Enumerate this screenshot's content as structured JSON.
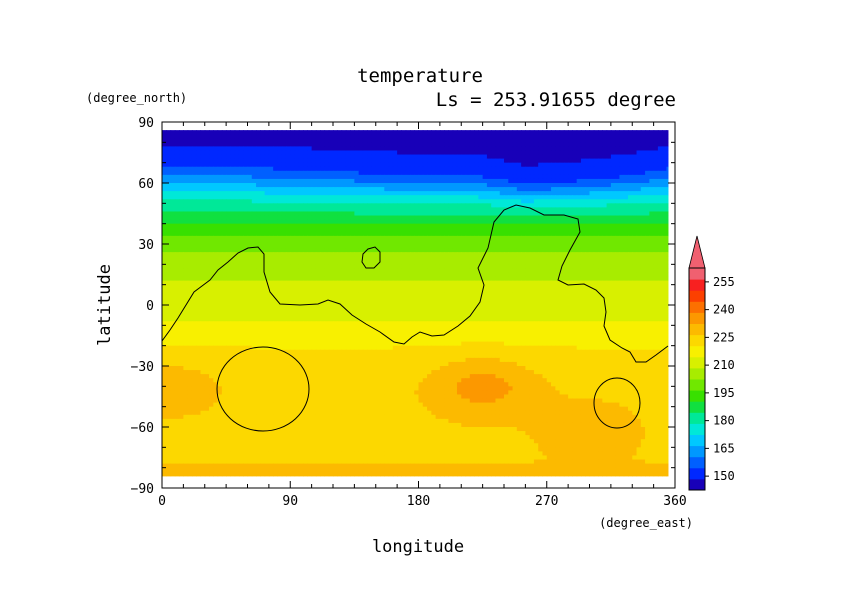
{
  "chart_data": {
    "type": "heatmap",
    "title": "temperature",
    "subtitle": "Ls = 253.91655 degree",
    "xlabel": "longitude",
    "ylabel": "latitude",
    "x_units": "(degree_east)",
    "y_units": "(degree_north)",
    "xlim": [
      0,
      360
    ],
    "ylim": [
      -90,
      90
    ],
    "x_ticks": [
      0,
      90,
      180,
      270,
      360
    ],
    "y_ticks": [
      90,
      60,
      30,
      0,
      -30,
      -60,
      -90
    ],
    "colorbar": {
      "levels": [
        150,
        165,
        180,
        195,
        210,
        225,
        240,
        255
      ],
      "min": 142.5,
      "max": 262.5,
      "extend": "max"
    },
    "palette": [
      "#1800b8",
      "#0028ff",
      "#0060ff",
      "#0098ff",
      "#00c8ff",
      "#00e8d8",
      "#00e898",
      "#10e040",
      "#38e000",
      "#70e800",
      "#a8ec00",
      "#d8f000",
      "#f8f000",
      "#fcd800",
      "#fcba00",
      "#fc9800",
      "#fc7000",
      "#fc4000",
      "#f82020",
      "#f06070"
    ],
    "overlay": "topography contour",
    "temperature_profile": {
      "lat": [
        86,
        80,
        74,
        68,
        62,
        57,
        50,
        42,
        34,
        26,
        16,
        6,
        -4,
        -14,
        -20,
        -25,
        -40,
        -60,
        -75,
        -82
      ],
      "temp": [
        146,
        148,
        150,
        154,
        162,
        170,
        180,
        188,
        196,
        202,
        207,
        210,
        213,
        217,
        220,
        222,
        224,
        225,
        226,
        227
      ]
    },
    "polar_front_lon": [
      0,
      60,
      120,
      180,
      220,
      255,
      290,
      330,
      360
    ],
    "polar_front_shift": [
      0,
      0,
      -2,
      -4,
      -4,
      -10,
      -8,
      -4,
      0
    ],
    "warm_spots": [
      {
        "lon": 225,
        "lat": -40,
        "temp": 235
      },
      {
        "lon": 5,
        "lat": -40,
        "temp": 230
      },
      {
        "lon": 300,
        "lat": -58,
        "temp": 229
      }
    ]
  }
}
